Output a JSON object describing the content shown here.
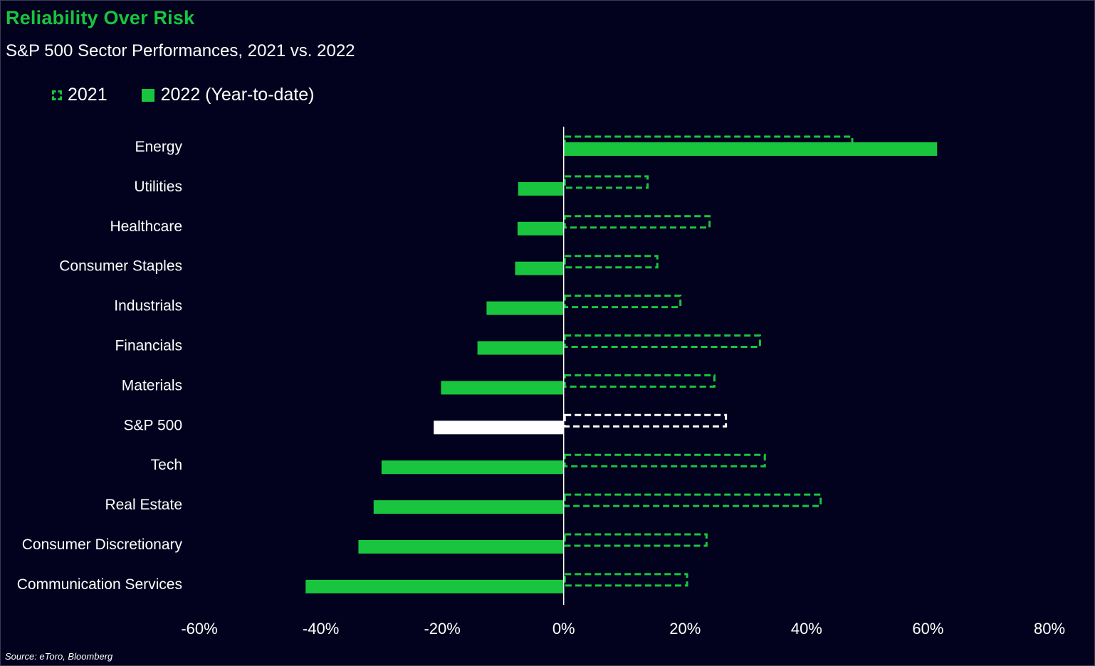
{
  "header": {
    "title": "Reliability Over Risk",
    "subtitle": "S&P 500 Sector Performances, 2021 vs. 2022"
  },
  "legend": {
    "items": [
      {
        "label": "2021",
        "style": "dashed"
      },
      {
        "label": "2022 (Year-to-date)",
        "style": "solid"
      }
    ]
  },
  "source": "Source: eToro, Bloomberg",
  "colors": {
    "background": "#02021e",
    "accent": "#19c53f",
    "highlight": "#ffffff",
    "text": "#ffffff"
  },
  "chart_data": {
    "type": "bar",
    "orientation": "horizontal",
    "title": "Reliability Over Risk",
    "subtitle": "S&P 500 Sector Performances, 2021 vs. 2022",
    "categories": [
      "Energy",
      "Utilities",
      "Healthcare",
      "Consumer Staples",
      "Industrials",
      "Financials",
      "Materials",
      "S&P 500",
      "Tech",
      "Real Estate",
      "Consumer Discretionary",
      "Communication Services"
    ],
    "highlight_category": "S&P 500",
    "series": [
      {
        "name": "2021",
        "style": "dashed",
        "values": [
          47.7,
          14.0,
          24.2,
          15.6,
          19.4,
          32.5,
          25.0,
          26.9,
          33.3,
          42.5,
          23.7,
          20.5
        ]
      },
      {
        "name": "2022 (Year-to-date)",
        "style": "solid",
        "values": [
          61.5,
          -7.5,
          -7.6,
          -8.0,
          -12.7,
          -14.2,
          -20.2,
          -21.4,
          -30.0,
          -31.3,
          -33.8,
          -42.5
        ]
      }
    ],
    "xlim": [
      -60,
      80
    ],
    "xticks": [
      "-60%",
      "-40%",
      "-20%",
      "0%",
      "20%",
      "40%",
      "60%",
      "80%"
    ],
    "tick_values": [
      -60,
      -40,
      -20,
      0,
      20,
      40,
      60,
      80
    ],
    "grid": false,
    "legend_position": "top-left"
  }
}
